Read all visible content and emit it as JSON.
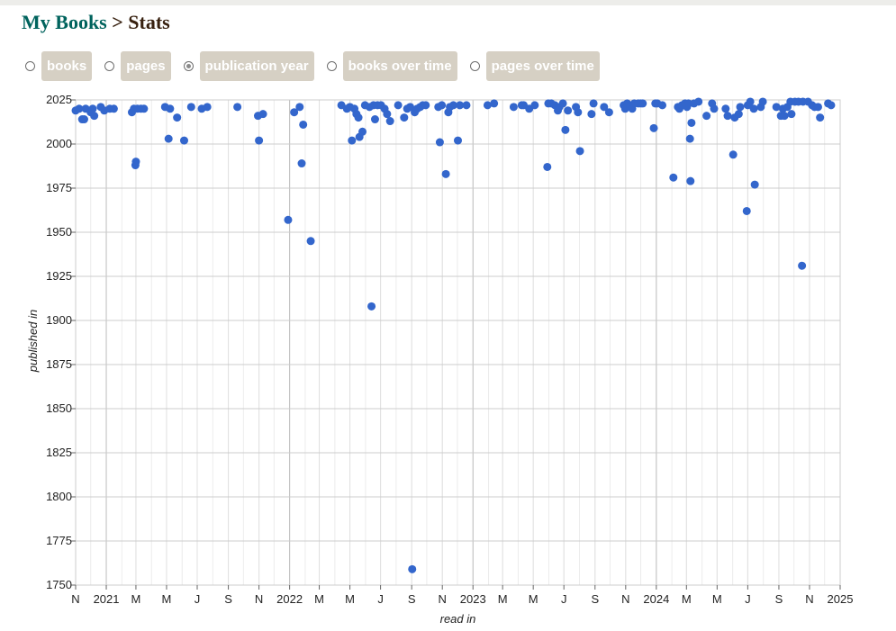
{
  "breadcrumb": {
    "home": "My Books",
    "separator": ">",
    "current": "Stats"
  },
  "options": [
    {
      "label": "books",
      "checked": false
    },
    {
      "label": "pages",
      "checked": false
    },
    {
      "label": "publication year",
      "checked": true
    },
    {
      "label": "books over time",
      "checked": false
    },
    {
      "label": "pages over time",
      "checked": false
    }
  ],
  "colors": {
    "point": "#3366cc",
    "grid": "#cccccc",
    "pill": "#d6d0c4",
    "title": "#382110",
    "link": "#00635d"
  },
  "chart_data": {
    "type": "scatter",
    "xlabel": "read in",
    "ylabel": "published in",
    "grid": true,
    "legend": "none",
    "xlim": [
      "2020-11-01",
      "2025-01-01"
    ],
    "ylim": [
      1750,
      2025
    ],
    "xticks": [
      {
        "date": "2020-11-01",
        "label": "N",
        "major": false
      },
      {
        "date": "2021-01-01",
        "label": "2021",
        "major": true
      },
      {
        "date": "2021-03-01",
        "label": "M",
        "major": false
      },
      {
        "date": "2021-05-01",
        "label": "M",
        "major": false
      },
      {
        "date": "2021-07-01",
        "label": "J",
        "major": false
      },
      {
        "date": "2021-09-01",
        "label": "S",
        "major": false
      },
      {
        "date": "2021-11-01",
        "label": "N",
        "major": false
      },
      {
        "date": "2022-01-01",
        "label": "2022",
        "major": true
      },
      {
        "date": "2022-03-01",
        "label": "M",
        "major": false
      },
      {
        "date": "2022-05-01",
        "label": "M",
        "major": false
      },
      {
        "date": "2022-07-01",
        "label": "J",
        "major": false
      },
      {
        "date": "2022-09-01",
        "label": "S",
        "major": false
      },
      {
        "date": "2022-11-01",
        "label": "N",
        "major": false
      },
      {
        "date": "2023-01-01",
        "label": "2023",
        "major": true
      },
      {
        "date": "2023-03-01",
        "label": "M",
        "major": false
      },
      {
        "date": "2023-05-01",
        "label": "M",
        "major": false
      },
      {
        "date": "2023-07-01",
        "label": "J",
        "major": false
      },
      {
        "date": "2023-09-01",
        "label": "S",
        "major": false
      },
      {
        "date": "2023-11-01",
        "label": "N",
        "major": false
      },
      {
        "date": "2024-01-01",
        "label": "2024",
        "major": true
      },
      {
        "date": "2024-03-01",
        "label": "M",
        "major": false
      },
      {
        "date": "2024-05-01",
        "label": "M",
        "major": false
      },
      {
        "date": "2024-07-01",
        "label": "J",
        "major": false
      },
      {
        "date": "2024-09-01",
        "label": "S",
        "major": false
      },
      {
        "date": "2024-11-01",
        "label": "N",
        "major": false
      },
      {
        "date": "2025-01-01",
        "label": "2025",
        "major": true
      }
    ],
    "yticks": [
      2025,
      2000,
      1975,
      1950,
      1925,
      1900,
      1875,
      1850,
      1825,
      1800,
      1775,
      1750
    ],
    "points": [
      {
        "x": "2020-11-01",
        "y": 2019
      },
      {
        "x": "2020-11-08",
        "y": 2020
      },
      {
        "x": "2020-11-14",
        "y": 2014
      },
      {
        "x": "2020-11-18",
        "y": 2014
      },
      {
        "x": "2020-11-21",
        "y": 2020
      },
      {
        "x": "2020-12-01",
        "y": 2018
      },
      {
        "x": "2020-12-05",
        "y": 2020
      },
      {
        "x": "2020-12-08",
        "y": 2016
      },
      {
        "x": "2020-12-21",
        "y": 2021
      },
      {
        "x": "2020-12-28",
        "y": 2019
      },
      {
        "x": "2021-01-08",
        "y": 2020
      },
      {
        "x": "2021-01-16",
        "y": 2020
      },
      {
        "x": "2021-02-21",
        "y": 2018
      },
      {
        "x": "2021-02-25",
        "y": 2020
      },
      {
        "x": "2021-02-28",
        "y": 1988
      },
      {
        "x": "2021-03-01",
        "y": 1990
      },
      {
        "x": "2021-03-04",
        "y": 2020
      },
      {
        "x": "2021-03-11",
        "y": 2020
      },
      {
        "x": "2021-03-17",
        "y": 2020
      },
      {
        "x": "2021-04-28",
        "y": 2021
      },
      {
        "x": "2021-05-05",
        "y": 2003
      },
      {
        "x": "2021-05-08",
        "y": 2020
      },
      {
        "x": "2021-05-22",
        "y": 2015
      },
      {
        "x": "2021-06-05",
        "y": 2002
      },
      {
        "x": "2021-06-19",
        "y": 2021
      },
      {
        "x": "2021-07-10",
        "y": 2020
      },
      {
        "x": "2021-07-21",
        "y": 2021
      },
      {
        "x": "2021-09-19",
        "y": 2021
      },
      {
        "x": "2021-10-30",
        "y": 2016
      },
      {
        "x": "2021-11-01",
        "y": 2002
      },
      {
        "x": "2021-11-09",
        "y": 2017
      },
      {
        "x": "2021-12-29",
        "y": 1957
      },
      {
        "x": "2022-01-10",
        "y": 2018
      },
      {
        "x": "2022-01-21",
        "y": 2021
      },
      {
        "x": "2022-01-25",
        "y": 1989
      },
      {
        "x": "2022-01-28",
        "y": 2011
      },
      {
        "x": "2022-02-12",
        "y": 1945
      },
      {
        "x": "2022-04-14",
        "y": 2022
      },
      {
        "x": "2022-04-25",
        "y": 2020
      },
      {
        "x": "2022-05-01",
        "y": 2021
      },
      {
        "x": "2022-05-05",
        "y": 2002
      },
      {
        "x": "2022-05-10",
        "y": 2020
      },
      {
        "x": "2022-05-14",
        "y": 2017
      },
      {
        "x": "2022-05-18",
        "y": 2015
      },
      {
        "x": "2022-05-20",
        "y": 2004
      },
      {
        "x": "2022-05-26",
        "y": 2007
      },
      {
        "x": "2022-05-31",
        "y": 2022
      },
      {
        "x": "2022-06-09",
        "y": 2021
      },
      {
        "x": "2022-06-13",
        "y": 1908
      },
      {
        "x": "2022-06-17",
        "y": 2022
      },
      {
        "x": "2022-06-20",
        "y": 2014
      },
      {
        "x": "2022-06-25",
        "y": 2022
      },
      {
        "x": "2022-07-02",
        "y": 2022
      },
      {
        "x": "2022-07-09",
        "y": 2020
      },
      {
        "x": "2022-07-14",
        "y": 2017
      },
      {
        "x": "2022-07-20",
        "y": 2013
      },
      {
        "x": "2022-08-05",
        "y": 2022
      },
      {
        "x": "2022-08-17",
        "y": 2015
      },
      {
        "x": "2022-08-23",
        "y": 2020
      },
      {
        "x": "2022-08-29",
        "y": 2021
      },
      {
        "x": "2022-09-02",
        "y": 1759
      },
      {
        "x": "2022-09-07",
        "y": 2018
      },
      {
        "x": "2022-09-12",
        "y": 2020
      },
      {
        "x": "2022-09-18",
        "y": 2021
      },
      {
        "x": "2022-09-23",
        "y": 2022
      },
      {
        "x": "2022-09-29",
        "y": 2022
      },
      {
        "x": "2022-10-24",
        "y": 2021
      },
      {
        "x": "2022-10-27",
        "y": 2001
      },
      {
        "x": "2022-10-31",
        "y": 2022
      },
      {
        "x": "2022-11-08",
        "y": 1983
      },
      {
        "x": "2022-11-13",
        "y": 2018
      },
      {
        "x": "2022-11-16",
        "y": 2021
      },
      {
        "x": "2022-11-23",
        "y": 2022
      },
      {
        "x": "2022-12-02",
        "y": 2002
      },
      {
        "x": "2022-12-06",
        "y": 2022
      },
      {
        "x": "2022-12-19",
        "y": 2022
      },
      {
        "x": "2023-01-30",
        "y": 2022
      },
      {
        "x": "2023-02-12",
        "y": 2023
      },
      {
        "x": "2023-03-23",
        "y": 2021
      },
      {
        "x": "2023-04-08",
        "y": 2022
      },
      {
        "x": "2023-04-12",
        "y": 2022
      },
      {
        "x": "2023-04-23",
        "y": 2020
      },
      {
        "x": "2023-05-04",
        "y": 2022
      },
      {
        "x": "2023-05-29",
        "y": 1987
      },
      {
        "x": "2023-05-31",
        "y": 2023
      },
      {
        "x": "2023-06-06",
        "y": 2023
      },
      {
        "x": "2023-06-13",
        "y": 2022
      },
      {
        "x": "2023-06-19",
        "y": 2019
      },
      {
        "x": "2023-06-22",
        "y": 2021
      },
      {
        "x": "2023-06-29",
        "y": 2023
      },
      {
        "x": "2023-07-04",
        "y": 2008
      },
      {
        "x": "2023-07-09",
        "y": 2019
      },
      {
        "x": "2023-07-25",
        "y": 2021
      },
      {
        "x": "2023-07-29",
        "y": 2018
      },
      {
        "x": "2023-08-02",
        "y": 1996
      },
      {
        "x": "2023-08-25",
        "y": 2017
      },
      {
        "x": "2023-08-29",
        "y": 2023
      },
      {
        "x": "2023-09-19",
        "y": 2021
      },
      {
        "x": "2023-09-29",
        "y": 2018
      },
      {
        "x": "2023-10-28",
        "y": 2022
      },
      {
        "x": "2023-10-31",
        "y": 2020
      },
      {
        "x": "2023-11-04",
        "y": 2023
      },
      {
        "x": "2023-11-10",
        "y": 2022
      },
      {
        "x": "2023-11-14",
        "y": 2020
      },
      {
        "x": "2023-11-18",
        "y": 2023
      },
      {
        "x": "2023-11-26",
        "y": 2023
      },
      {
        "x": "2023-12-01",
        "y": 2023
      },
      {
        "x": "2023-12-05",
        "y": 2023
      },
      {
        "x": "2023-12-27",
        "y": 2009
      },
      {
        "x": "2023-12-30",
        "y": 2023
      },
      {
        "x": "2024-01-03",
        "y": 2023
      },
      {
        "x": "2024-01-13",
        "y": 2022
      },
      {
        "x": "2024-02-04",
        "y": 1981
      },
      {
        "x": "2024-02-13",
        "y": 2021
      },
      {
        "x": "2024-02-16",
        "y": 2020
      },
      {
        "x": "2024-02-21",
        "y": 2022
      },
      {
        "x": "2024-02-27",
        "y": 2023
      },
      {
        "x": "2024-03-02",
        "y": 2021
      },
      {
        "x": "2024-03-05",
        "y": 2023
      },
      {
        "x": "2024-03-08",
        "y": 2003
      },
      {
        "x": "2024-03-09",
        "y": 1979
      },
      {
        "x": "2024-03-11",
        "y": 2012
      },
      {
        "x": "2024-03-16",
        "y": 2023
      },
      {
        "x": "2024-03-25",
        "y": 2024
      },
      {
        "x": "2024-04-10",
        "y": 2016
      },
      {
        "x": "2024-04-21",
        "y": 2023
      },
      {
        "x": "2024-04-25",
        "y": 2020
      },
      {
        "x": "2024-05-18",
        "y": 2020
      },
      {
        "x": "2024-05-22",
        "y": 2016
      },
      {
        "x": "2024-06-02",
        "y": 1994
      },
      {
        "x": "2024-06-05",
        "y": 2015
      },
      {
        "x": "2024-06-13",
        "y": 2017
      },
      {
        "x": "2024-06-16",
        "y": 2021
      },
      {
        "x": "2024-06-29",
        "y": 1962
      },
      {
        "x": "2024-07-01",
        "y": 2022
      },
      {
        "x": "2024-07-06",
        "y": 2024
      },
      {
        "x": "2024-07-13",
        "y": 2020
      },
      {
        "x": "2024-07-15",
        "y": 1977
      },
      {
        "x": "2024-07-27",
        "y": 2021
      },
      {
        "x": "2024-07-31",
        "y": 2024
      },
      {
        "x": "2024-08-27",
        "y": 2021
      },
      {
        "x": "2024-09-05",
        "y": 2016
      },
      {
        "x": "2024-09-09",
        "y": 2020
      },
      {
        "x": "2024-09-12",
        "y": 2016
      },
      {
        "x": "2024-09-18",
        "y": 2021
      },
      {
        "x": "2024-09-24",
        "y": 2024
      },
      {
        "x": "2024-09-26",
        "y": 2017
      },
      {
        "x": "2024-10-03",
        "y": 2024
      },
      {
        "x": "2024-10-10",
        "y": 2024
      },
      {
        "x": "2024-10-17",
        "y": 1931
      },
      {
        "x": "2024-10-19",
        "y": 2024
      },
      {
        "x": "2024-10-29",
        "y": 2024
      },
      {
        "x": "2024-11-06",
        "y": 2022
      },
      {
        "x": "2024-11-11",
        "y": 2021
      },
      {
        "x": "2024-11-18",
        "y": 2021
      },
      {
        "x": "2024-11-22",
        "y": 2015
      },
      {
        "x": "2024-12-08",
        "y": 2023
      },
      {
        "x": "2024-12-14",
        "y": 2022
      }
    ]
  }
}
